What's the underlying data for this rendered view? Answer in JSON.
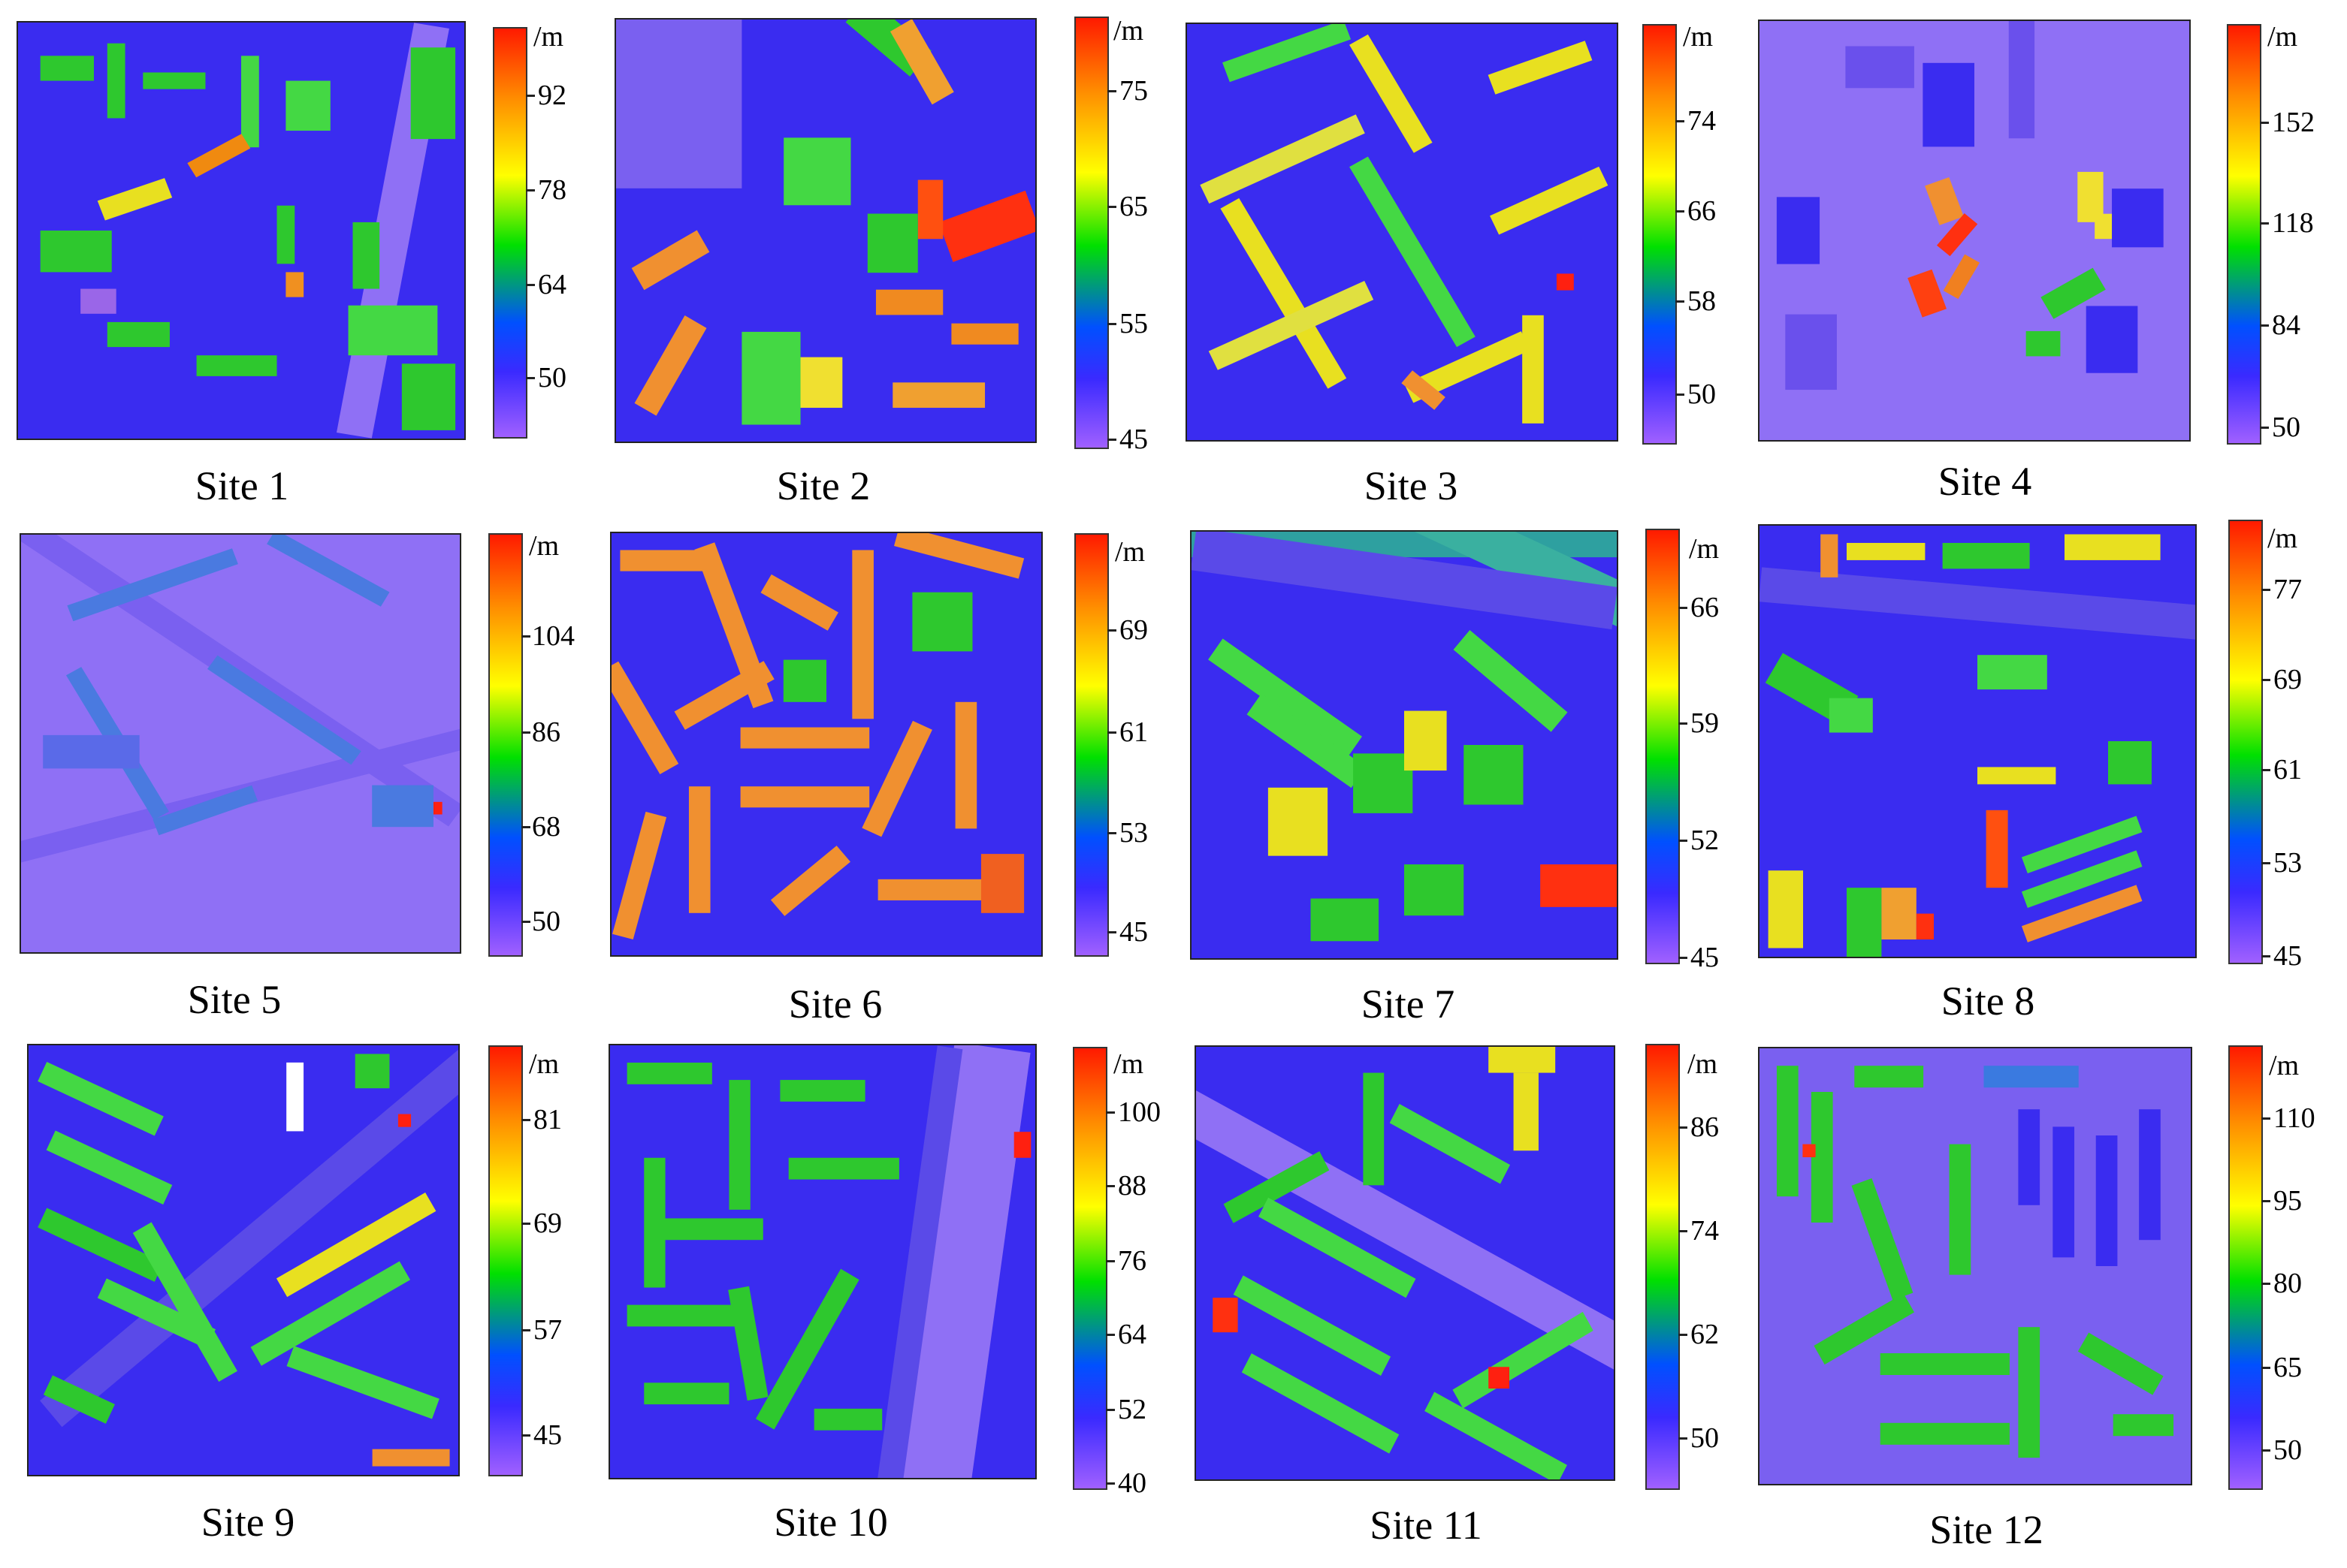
{
  "unit_label": "/m",
  "colorbar_colors": [
    "#ff1a00",
    "#ff8c00",
    "#ffff00",
    "#00e000",
    "#0050ff",
    "#3a2aff",
    "#a060ff"
  ],
  "sites": [
    {
      "caption": "Site 1",
      "ticks": [
        "92",
        "78",
        "64",
        "50"
      ]
    },
    {
      "caption": "Site 2",
      "ticks": [
        "75",
        "65",
        "55",
        "45"
      ]
    },
    {
      "caption": "Site 3",
      "ticks": [
        "74",
        "66",
        "58",
        "50"
      ]
    },
    {
      "caption": "Site 4",
      "ticks": [
        "152",
        "118",
        "84",
        "50"
      ]
    },
    {
      "caption": "Site 5",
      "ticks": [
        "104",
        "86",
        "68",
        "50"
      ]
    },
    {
      "caption": "Site 6",
      "ticks": [
        "69",
        "61",
        "53",
        "45"
      ]
    },
    {
      "caption": "Site 7",
      "ticks": [
        "66",
        "59",
        "52",
        "45"
      ]
    },
    {
      "caption": "Site 8",
      "ticks": [
        "77",
        "69",
        "61",
        "53",
        "45"
      ]
    },
    {
      "caption": "Site 9",
      "ticks": [
        "81",
        "69",
        "57",
        "45"
      ]
    },
    {
      "caption": "Site 10",
      "ticks": [
        "100",
        "88",
        "76",
        "64",
        "52",
        "40"
      ]
    },
    {
      "caption": "Site 11",
      "ticks": [
        "86",
        "74",
        "62",
        "50"
      ]
    },
    {
      "caption": "Site 12",
      "ticks": [
        "110",
        "95",
        "80",
        "65",
        "50"
      ]
    }
  ]
}
